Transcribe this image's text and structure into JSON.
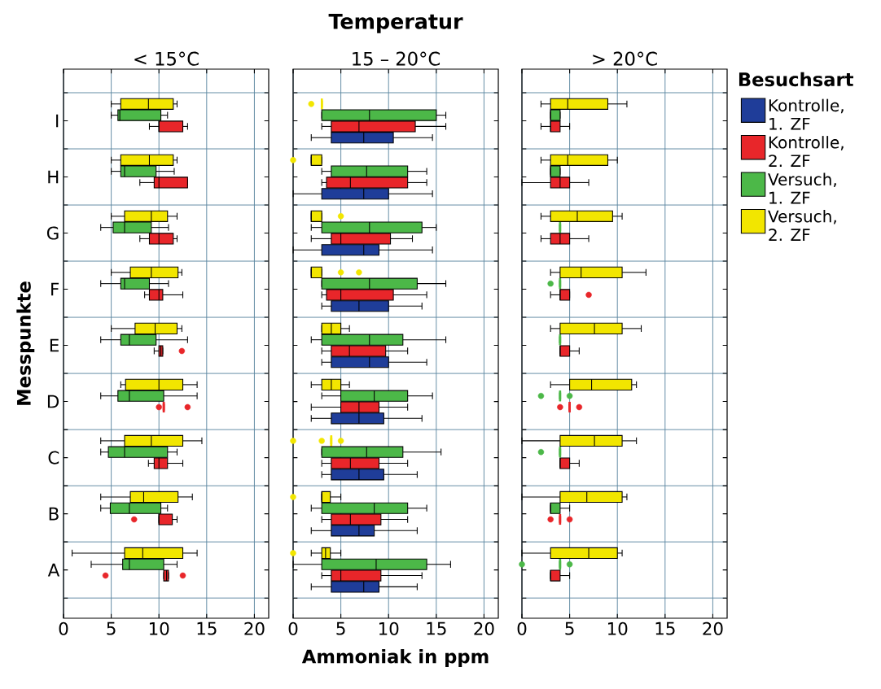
{
  "chart_data": [
    {
      "type": "box",
      "orientation": "horizontal",
      "subtitle": "< 15°C",
      "ylabel": "Messpunkte",
      "categories": [
        "I",
        "H",
        "G",
        "F",
        "E",
        "D",
        "C",
        "B",
        "A"
      ],
      "xlim": [
        0,
        21.5
      ],
      "xticks": [
        0,
        5,
        10,
        15,
        20
      ],
      "grid": true,
      "series": [
        {
          "color": "#f2e600",
          "boxes": [
            {
              "low": 5.0,
              "q1": 6.0,
              "median": 8.9,
              "q3": 11.5,
              "high": 11.9
            },
            {
              "low": 5.0,
              "q1": 6.0,
              "median": 9.0,
              "q3": 11.5,
              "high": 11.9
            },
            {
              "low": 5.0,
              "q1": 6.4,
              "median": 9.2,
              "q3": 10.9,
              "high": 11.9
            },
            {
              "low": 5.0,
              "q1": 7.0,
              "median": 9.2,
              "q3": 12.0,
              "high": 12.4
            },
            {
              "low": 5.0,
              "q1": 7.5,
              "median": 9.6,
              "q3": 11.9,
              "high": 12.4
            },
            {
              "low": 6.0,
              "q1": 6.5,
              "median": 10.0,
              "q3": 12.5,
              "high": 14.0
            },
            {
              "low": 3.9,
              "q1": 6.4,
              "median": 9.2,
              "q3": 12.5,
              "high": 14.5
            },
            {
              "low": 3.9,
              "q1": 7.0,
              "median": 8.4,
              "q3": 12.0,
              "high": 13.5
            },
            {
              "low": 0.9,
              "q1": 6.4,
              "median": 8.3,
              "q3": 12.5,
              "high": 14.0
            }
          ]
        },
        {
          "color": "#4cb848",
          "boxes": [
            {
              "low": 5.0,
              "q1": 5.7,
              "median": 5.9,
              "q3": 10.2,
              "high": 10.9
            },
            {
              "low": 5.0,
              "q1": 6.0,
              "median": 6.4,
              "q3": 9.7,
              "high": 11.6
            },
            {
              "low": 3.9,
              "q1": 5.2,
              "median": 6.4,
              "q3": 9.2,
              "high": 11.0
            },
            {
              "low": 3.9,
              "q1": 6.0,
              "median": 6.4,
              "q3": 9.0,
              "high": 11.0
            },
            {
              "low": 3.9,
              "q1": 6.0,
              "median": 6.9,
              "q3": 9.7,
              "high": 13.0
            },
            {
              "low": 3.9,
              "q1": 5.7,
              "median": 6.9,
              "q3": 10.5,
              "high": 14.0
            },
            {
              "low": 3.9,
              "q1": 4.7,
              "median": 6.4,
              "q3": 10.9,
              "high": 11.9
            },
            {
              "low": 3.9,
              "q1": 4.9,
              "median": 6.9,
              "q3": 10.2,
              "high": 10.9
            },
            {
              "low": 2.9,
              "q1": 6.2,
              "median": 6.9,
              "q3": 10.5,
              "high": 11.9
            }
          ]
        },
        {
          "color": "#e8262a",
          "boxes": [
            {
              "low": 9.0,
              "q1": 10.0,
              "median": 10.0,
              "q3": 12.5,
              "high": 13.0
            },
            {
              "low": 8.0,
              "q1": 9.5,
              "median": 10.0,
              "q3": 13.0,
              "high": 13.0
            },
            {
              "low": 8.0,
              "q1": 9.0,
              "median": 10.0,
              "q3": 11.5,
              "high": 11.9
            },
            {
              "low": 8.5,
              "q1": 9.0,
              "median": 10.0,
              "q3": 10.4,
              "high": 12.5
            },
            {
              "low": 9.5,
              "q1": 10.0,
              "median": 10.2,
              "q3": 10.4,
              "high": 10.4,
              "outliers": [
                12.4
              ]
            },
            {
              "low": 10.5,
              "q1": 10.5,
              "median": 10.5,
              "q3": 10.5,
              "high": 10.5,
              "outliers": [
                10.0,
                13.0
              ]
            },
            {
              "low": 8.9,
              "q1": 9.5,
              "median": 10.0,
              "q3": 10.9,
              "high": 12.5
            },
            {
              "low": 10.0,
              "q1": 10.0,
              "median": 10.0,
              "q3": 11.4,
              "high": 11.9,
              "outliers": [
                7.4
              ]
            },
            {
              "low": 10.5,
              "q1": 10.5,
              "median": 10.8,
              "q3": 11.0,
              "high": 11.0,
              "outliers": [
                4.4,
                12.5
              ]
            }
          ]
        }
      ]
    },
    {
      "type": "box",
      "orientation": "horizontal",
      "title": "Temperatur",
      "subtitle": "15 – 20°C",
      "xlabel": "Ammoniak in ppm",
      "categories": [
        null,
        null,
        null,
        null,
        null,
        null,
        null,
        null,
        null
      ],
      "xlim": [
        0,
        21.5
      ],
      "xticks": [
        0,
        5,
        10,
        15,
        20
      ],
      "grid": true,
      "tick_labels": "x",
      "series": [
        {
          "color": "#f2e600",
          "boxes": [
            {
              "low": 3.0,
              "q1": 3.0,
              "median": 3.0,
              "q3": 3.0,
              "high": 3.0,
              "outliers": [
                1.9
              ]
            },
            {
              "low": 1.9,
              "q1": 1.9,
              "median": 1.9,
              "q3": 3.0,
              "high": 3.0,
              "outliers": [
                0
              ]
            },
            {
              "low": 1.9,
              "q1": 1.9,
              "median": 1.9,
              "q3": 3.0,
              "high": 3.0,
              "outliers": [
                5.0
              ]
            },
            {
              "low": 1.9,
              "q1": 1.9,
              "median": 1.9,
              "q3": 3.0,
              "high": 3.0,
              "outliers": [
                5.0,
                6.9
              ]
            },
            {
              "low": 3.0,
              "q1": 3.0,
              "median": 4.0,
              "q3": 5.0,
              "high": 5.9
            },
            {
              "low": 1.9,
              "q1": 3.0,
              "median": 4.0,
              "q3": 5.0,
              "high": 5.9
            },
            {
              "low": 4.0,
              "q1": 4.0,
              "median": 4.0,
              "q3": 4.0,
              "high": 4.0,
              "outliers": [
                0,
                3.0,
                5.0
              ]
            },
            {
              "low": 3.0,
              "q1": 3.0,
              "median": 3.0,
              "q3": 3.9,
              "high": 5.0,
              "outliers": [
                0
              ]
            },
            {
              "low": 1.9,
              "q1": 3.0,
              "median": 3.4,
              "q3": 3.9,
              "high": 5.0,
              "outliers": [
                0
              ]
            }
          ]
        },
        {
          "color": "#4cb848",
          "boxes": [
            {
              "low": 3.0,
              "q1": 3.0,
              "median": 8.0,
              "q3": 15.0,
              "high": 16.0
            },
            {
              "low": 3.0,
              "q1": 4.0,
              "median": 7.7,
              "q3": 12.0,
              "high": 14.0
            },
            {
              "low": 1.9,
              "q1": 3.0,
              "median": 8.0,
              "q3": 13.5,
              "high": 15.0
            },
            {
              "low": 3.0,
              "q1": 3.0,
              "median": 8.0,
              "q3": 13.0,
              "high": 16.0
            },
            {
              "low": 1.9,
              "q1": 3.0,
              "median": 8.0,
              "q3": 11.5,
              "high": 16.0
            },
            {
              "low": 3.0,
              "q1": 5.0,
              "median": 8.5,
              "q3": 12.0,
              "high": 14.6
            },
            {
              "low": 3.0,
              "q1": 3.0,
              "median": 7.7,
              "q3": 11.5,
              "high": 15.5
            },
            {
              "low": 1.9,
              "q1": 3.0,
              "median": 8.5,
              "q3": 12.0,
              "high": 14.0
            },
            {
              "low": 0,
              "q1": 3.0,
              "median": 8.7,
              "q3": 14.0,
              "high": 16.5
            }
          ]
        },
        {
          "color": "#e8262a",
          "boxes": [
            {
              "low": 3.0,
              "q1": 4.0,
              "median": 6.9,
              "q3": 12.8,
              "high": 16.0
            },
            {
              "low": 3.0,
              "q1": 3.5,
              "median": 6.0,
              "q3": 12.0,
              "high": 14.0
            },
            {
              "low": 1.9,
              "q1": 4.0,
              "median": 5.0,
              "q3": 10.2,
              "high": 12.5
            },
            {
              "low": 3.0,
              "q1": 3.5,
              "median": 5.0,
              "q3": 10.5,
              "high": 14.0
            },
            {
              "low": 3.0,
              "q1": 4.0,
              "median": 5.9,
              "q3": 9.7,
              "high": 12.0
            },
            {
              "low": 1.9,
              "q1": 5.0,
              "median": 6.9,
              "q3": 9.0,
              "high": 12.0
            },
            {
              "low": 3.0,
              "q1": 4.0,
              "median": 6.0,
              "q3": 9.0,
              "high": 12.0
            },
            {
              "low": 3.0,
              "q1": 4.0,
              "median": 6.0,
              "q3": 9.2,
              "high": 12.0
            },
            {
              "low": 3.0,
              "q1": 4.0,
              "median": 5.0,
              "q3": 9.2,
              "high": 13.5
            }
          ]
        },
        {
          "color": "#1f3d99",
          "boxes": [
            {
              "low": 1.9,
              "q1": 4.0,
              "median": 7.4,
              "q3": 10.5,
              "high": 14.6
            },
            {
              "low": 0,
              "q1": 3.0,
              "median": 7.4,
              "q3": 10.0,
              "high": 14.6
            },
            {
              "low": 0,
              "q1": 3.0,
              "median": 7.4,
              "q3": 9.0,
              "high": 14.6
            },
            {
              "low": 3.0,
              "q1": 4.0,
              "median": 6.9,
              "q3": 10.0,
              "high": 13.5
            },
            {
              "low": 3.0,
              "q1": 4.0,
              "median": 8.0,
              "q3": 10.0,
              "high": 14.0
            },
            {
              "low": 1.9,
              "q1": 4.0,
              "median": 6.9,
              "q3": 9.5,
              "high": 13.5
            },
            {
              "low": 3.0,
              "q1": 4.0,
              "median": 6.9,
              "q3": 9.5,
              "high": 13.0
            },
            {
              "low": 1.9,
              "q1": 4.0,
              "median": 6.9,
              "q3": 8.5,
              "high": 13.0
            },
            {
              "low": 1.9,
              "q1": 4.0,
              "median": 7.4,
              "q3": 9.0,
              "high": 13.0
            }
          ]
        }
      ]
    },
    {
      "type": "box",
      "orientation": "horizontal",
      "subtitle": "> 20°C",
      "legend_title": "Besuchsart",
      "legend": "right",
      "categories": [
        null,
        null,
        null,
        null,
        null,
        null,
        null,
        null,
        null
      ],
      "xlim": [
        0,
        21.5
      ],
      "xticks": [
        0,
        5,
        10,
        15,
        20
      ],
      "grid": true,
      "tick_labels": "x",
      "series": [
        {
          "name": "Versuch, 2. ZF",
          "color": "#f2e600",
          "boxes": [
            {
              "low": 2.0,
              "q1": 3.0,
              "median": 4.8,
              "q3": 9.0,
              "high": 11.0
            },
            {
              "low": 2.0,
              "q1": 3.0,
              "median": 4.8,
              "q3": 9.0,
              "high": 10.0
            },
            {
              "low": 2.0,
              "q1": 3.0,
              "median": 5.8,
              "q3": 9.5,
              "high": 10.5
            },
            {
              "low": 3.0,
              "q1": 4.0,
              "median": 6.2,
              "q3": 10.5,
              "high": 13.0
            },
            {
              "low": 3.0,
              "q1": 4.0,
              "median": 7.6,
              "q3": 10.5,
              "high": 12.5
            },
            {
              "low": 3.0,
              "q1": 5.0,
              "median": 7.3,
              "q3": 11.5,
              "high": 12.0
            },
            {
              "low": 0,
              "q1": 4.0,
              "median": 7.6,
              "q3": 10.5,
              "high": 12.0
            },
            {
              "low": 0,
              "q1": 4.0,
              "median": 6.8,
              "q3": 10.5,
              "high": 11.0
            },
            {
              "low": 0,
              "q1": 3.0,
              "median": 7.0,
              "q3": 10.0,
              "high": 10.5
            }
          ]
        },
        {
          "name": "Versuch, 1. ZF",
          "color": "#4cb848",
          "boxes": [
            {
              "low": 3.0,
              "q1": 3.0,
              "median": 3.0,
              "q3": 4.0,
              "high": 4.0
            },
            {
              "low": 3.0,
              "q1": 3.0,
              "median": 3.0,
              "q3": 4.0,
              "high": 4.0
            },
            {
              "low": 4.0,
              "q1": 4.0,
              "median": 4.0,
              "q3": 4.0,
              "high": 4.0
            },
            {
              "low": 4.0,
              "q1": 4.0,
              "median": 4.0,
              "q3": 4.0,
              "high": 4.0,
              "outliers": [
                3.0
              ]
            },
            {
              "low": 4.0,
              "q1": 4.0,
              "median": 4.0,
              "q3": 4.0,
              "high": 4.0
            },
            {
              "low": 4.0,
              "q1": 4.0,
              "median": 4.0,
              "q3": 4.0,
              "high": 4.0,
              "outliers": [
                2.0,
                5.0
              ]
            },
            {
              "low": 4.0,
              "q1": 4.0,
              "median": 4.0,
              "q3": 4.0,
              "high": 4.0,
              "outliers": [
                2.0
              ]
            },
            {
              "low": 3.0,
              "q1": 3.0,
              "median": 3.0,
              "q3": 4.0,
              "high": 5.0
            },
            {
              "low": 4.0,
              "q1": 4.0,
              "median": 4.0,
              "q3": 4.0,
              "high": 4.0,
              "outliers": [
                0,
                5.0
              ]
            }
          ]
        },
        {
          "name": "Kontrolle, 2. ZF",
          "color": "#e8262a",
          "boxes": [
            {
              "low": 2.0,
              "q1": 3.0,
              "median": 3.0,
              "q3": 4.0,
              "high": 5.0
            },
            {
              "low": 0,
              "q1": 3.0,
              "median": 4.0,
              "q3": 5.0,
              "high": 7.0
            },
            {
              "low": 2.0,
              "q1": 3.0,
              "median": 4.0,
              "q3": 5.0,
              "high": 7.0
            },
            {
              "low": 3.0,
              "q1": 4.0,
              "median": 4.0,
              "q3": 5.0,
              "high": 5.0,
              "outliers": [
                7.0
              ]
            },
            {
              "low": 4.0,
              "q1": 4.0,
              "median": 4.0,
              "q3": 5.0,
              "high": 6.0
            },
            {
              "low": 5.0,
              "q1": 5.0,
              "median": 5.0,
              "q3": 5.0,
              "high": 5.0,
              "outliers": [
                4.0,
                6.0
              ]
            },
            {
              "low": 4.0,
              "q1": 4.0,
              "median": 4.0,
              "q3": 5.0,
              "high": 6.0
            },
            {
              "low": 4.0,
              "q1": 4.0,
              "median": 4.0,
              "q3": 4.0,
              "high": 4.0,
              "outliers": [
                3.0,
                5.0
              ]
            },
            {
              "low": 3.0,
              "q1": 3.0,
              "median": 3.0,
              "q3": 4.0,
              "high": 5.0
            }
          ]
        },
        {
          "name": "Kontrolle, 1. ZF",
          "color": "#1f3d99",
          "boxes": [
            null,
            null,
            null,
            null,
            null,
            null,
            null,
            null,
            null
          ]
        }
      ]
    }
  ]
}
